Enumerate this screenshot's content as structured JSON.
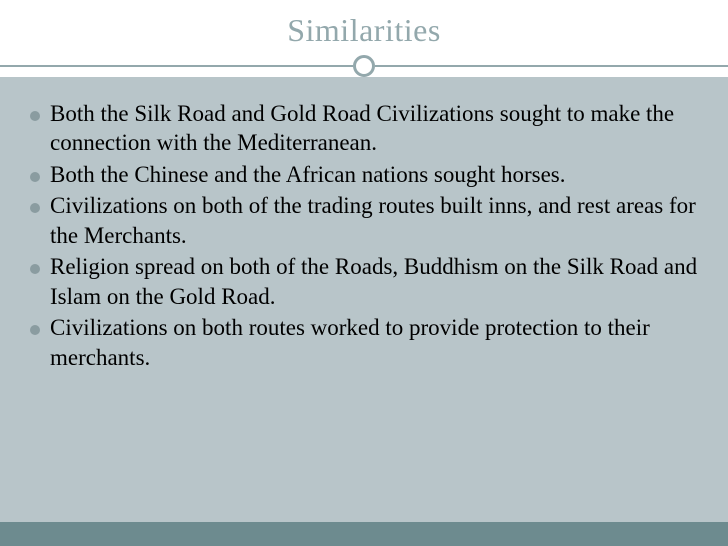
{
  "slide": {
    "title": "Similarities",
    "title_color": "#93a8ac",
    "title_fontsize": 32,
    "divider_color": "#93a8ac",
    "header_bg": "#ffffff",
    "content_bg": "#b8c5c9",
    "footer_bg": "#6d8b8f",
    "bullet_color": "#8a9ca0",
    "text_color": "#000000",
    "text_fontsize": 23,
    "bullets": [
      "Both the Silk Road and Gold Road Civilizations sought to make the connection with the Mediterranean.",
      "Both the Chinese and the African nations sought horses.",
      "Civilizations on both of the trading routes built inns, and rest areas for the Merchants.",
      "Religion spread on both of the Roads, Buddhism on the Silk Road and Islam on the Gold Road.",
      "Civilizations on both routes worked to provide protection to their merchants."
    ]
  }
}
